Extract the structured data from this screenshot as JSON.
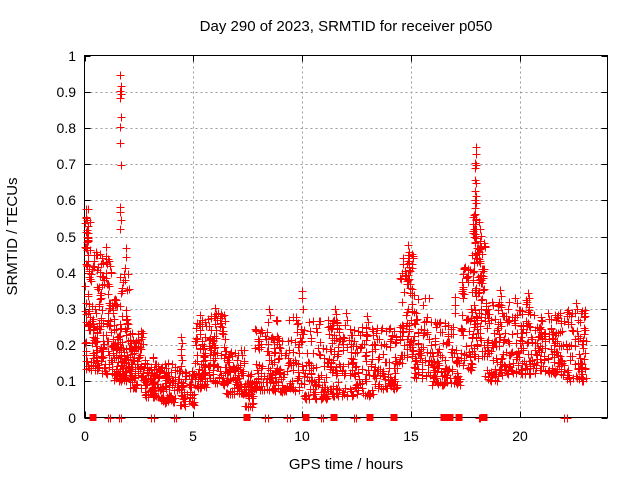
{
  "page": {
    "background": "#ffffff"
  },
  "chart_data": {
    "type": "scatter",
    "title": "Day 290 of 2023, SRMTID for receiver p050",
    "xlabel": "GPS time / hours",
    "ylabel": "SRMTID / TECUs",
    "xlim": [
      0,
      24
    ],
    "ylim": [
      0,
      1
    ],
    "xtick_values": [
      0,
      5,
      10,
      15,
      20
    ],
    "xtick_labels": [
      "0",
      "5",
      "10",
      "15",
      "20"
    ],
    "ytick_values": [
      0,
      0.1,
      0.2,
      0.3,
      0.4,
      0.5,
      0.6,
      0.7,
      0.8,
      0.9,
      1
    ],
    "ytick_labels": [
      "0",
      "0.1",
      "0.2",
      "0.3",
      "0.4",
      "0.5",
      "0.6",
      "0.7",
      "0.8",
      "0.9",
      "1"
    ],
    "grid": true,
    "legend": "none",
    "marker": "plus",
    "marker_color": "#ff0000",
    "grid_color": "#9a9a9a",
    "axis_color": "#000000",
    "random_seed": 20231017,
    "peak_points": [
      [
        0.07,
        0.575
      ],
      [
        0.09,
        0.555
      ],
      [
        0.11,
        0.545
      ],
      [
        0.08,
        0.512
      ],
      [
        0.12,
        0.5
      ],
      [
        0.15,
        0.498
      ],
      [
        0.17,
        0.488
      ],
      [
        0.05,
        0.47
      ],
      [
        0.1,
        0.462
      ],
      [
        1.0,
        0.47
      ],
      [
        0.99,
        0.445
      ],
      [
        1.02,
        0.425
      ],
      [
        1.0,
        0.4
      ],
      [
        0.97,
        0.385
      ],
      [
        1.03,
        0.37
      ],
      [
        1.65,
        0.945
      ],
      [
        1.66,
        0.917
      ],
      [
        1.64,
        0.902
      ],
      [
        1.67,
        0.894
      ],
      [
        1.65,
        0.882
      ],
      [
        1.66,
        0.83
      ],
      [
        1.64,
        0.802
      ],
      [
        1.65,
        0.757
      ],
      [
        1.66,
        0.697
      ],
      [
        1.63,
        0.582
      ],
      [
        1.65,
        0.568
      ],
      [
        1.67,
        0.545
      ],
      [
        1.64,
        0.522
      ],
      [
        1.9,
        0.468
      ],
      [
        1.91,
        0.443
      ],
      [
        1.88,
        0.412
      ],
      [
        4.45,
        0.222
      ],
      [
        4.46,
        0.205
      ],
      [
        4.44,
        0.19
      ],
      [
        4.45,
        0.172
      ],
      [
        4.46,
        0.158
      ],
      [
        4.44,
        0.142
      ],
      [
        5.32,
        0.282
      ],
      [
        5.38,
        0.268
      ],
      [
        5.28,
        0.252
      ],
      [
        5.98,
        0.302
      ],
      [
        6.04,
        0.285
      ],
      [
        6.1,
        0.27
      ],
      [
        8.48,
        0.3
      ],
      [
        8.52,
        0.282
      ],
      [
        8.42,
        0.265
      ],
      [
        10.0,
        0.35
      ],
      [
        9.97,
        0.33
      ],
      [
        10.03,
        0.3
      ],
      [
        11.5,
        0.3
      ],
      [
        11.55,
        0.285
      ],
      [
        11.45,
        0.27
      ],
      [
        11.6,
        0.26
      ],
      [
        12.0,
        0.29
      ],
      [
        12.05,
        0.27
      ],
      [
        11.95,
        0.255
      ],
      [
        12.95,
        0.28
      ],
      [
        13.0,
        0.265
      ],
      [
        12.9,
        0.25
      ],
      [
        14.85,
        0.477
      ],
      [
        14.87,
        0.458
      ],
      [
        14.83,
        0.448
      ],
      [
        14.9,
        0.44
      ],
      [
        14.86,
        0.432
      ],
      [
        14.8,
        0.425
      ],
      [
        14.88,
        0.415
      ],
      [
        14.92,
        0.405
      ],
      [
        14.84,
        0.395
      ],
      [
        14.9,
        0.383
      ],
      [
        14.86,
        0.37
      ],
      [
        14.94,
        0.357
      ],
      [
        14.6,
        0.44
      ],
      [
        14.63,
        0.425
      ],
      [
        14.57,
        0.398
      ],
      [
        17.0,
        0.332
      ],
      [
        16.99,
        0.31
      ],
      [
        17.02,
        0.29
      ],
      [
        17.95,
        0.747
      ],
      [
        17.96,
        0.728
      ],
      [
        17.92,
        0.703
      ],
      [
        17.97,
        0.697
      ],
      [
        17.94,
        0.69
      ],
      [
        17.91,
        0.656
      ],
      [
        17.95,
        0.647
      ],
      [
        17.93,
        0.625
      ],
      [
        17.97,
        0.612
      ],
      [
        17.9,
        0.6
      ],
      [
        17.96,
        0.592
      ],
      [
        17.92,
        0.578
      ],
      [
        17.94,
        0.562
      ],
      [
        17.98,
        0.548
      ],
      [
        17.9,
        0.535
      ],
      [
        17.95,
        0.522
      ],
      [
        17.93,
        0.508
      ],
      [
        17.97,
        0.495
      ],
      [
        17.91,
        0.482
      ],
      [
        17.99,
        0.468
      ],
      [
        17.94,
        0.455
      ],
      [
        18.0,
        0.44
      ],
      [
        17.89,
        0.43
      ],
      [
        18.16,
        0.52
      ],
      [
        18.2,
        0.502
      ],
      [
        18.18,
        0.472
      ],
      [
        18.23,
        0.452
      ],
      [
        18.17,
        0.432
      ],
      [
        18.25,
        0.41
      ],
      [
        18.14,
        0.392
      ],
      [
        18.21,
        0.372
      ],
      [
        18.27,
        0.352
      ],
      [
        19.05,
        0.352
      ],
      [
        19.1,
        0.335
      ],
      [
        19.0,
        0.32
      ],
      [
        20.35,
        0.345
      ],
      [
        20.4,
        0.33
      ],
      [
        20.3,
        0.318
      ],
      [
        22.55,
        0.315
      ],
      [
        22.6,
        0.3
      ],
      [
        22.5,
        0.29
      ]
    ],
    "band_segments": [
      [
        0.02,
        0.3,
        55,
        0.1,
        0.58,
        1.0
      ],
      [
        0.3,
        0.75,
        70,
        0.13,
        0.46,
        1.3
      ],
      [
        0.75,
        1.25,
        65,
        0.12,
        0.45,
        1.4
      ],
      [
        1.25,
        1.55,
        45,
        0.1,
        0.34,
        1.3
      ],
      [
        1.55,
        2.05,
        85,
        0.1,
        0.4,
        1.4
      ],
      [
        2.05,
        2.7,
        80,
        0.08,
        0.24,
        1.3
      ],
      [
        2.7,
        3.5,
        80,
        0.055,
        0.17,
        1.3
      ],
      [
        3.5,
        4.35,
        70,
        0.04,
        0.15,
        1.3
      ],
      [
        4.35,
        5.05,
        45,
        0.03,
        0.13,
        1.2
      ],
      [
        5.05,
        5.65,
        70,
        0.08,
        0.27,
        1.5
      ],
      [
        5.65,
        6.45,
        80,
        0.09,
        0.29,
        1.6
      ],
      [
        6.45,
        7.35,
        80,
        0.065,
        0.19,
        1.4
      ],
      [
        7.35,
        7.75,
        35,
        0.03,
        0.12,
        1.2
      ],
      [
        7.75,
        8.75,
        85,
        0.075,
        0.27,
        1.7
      ],
      [
        8.75,
        9.95,
        90,
        0.07,
        0.28,
        1.8
      ],
      [
        9.95,
        11.25,
        95,
        0.05,
        0.27,
        1.8
      ],
      [
        11.25,
        12.1,
        75,
        0.06,
        0.27,
        1.7
      ],
      [
        12.1,
        13.35,
        95,
        0.06,
        0.25,
        1.6
      ],
      [
        13.35,
        14.45,
        80,
        0.08,
        0.25,
        1.5
      ],
      [
        14.45,
        14.75,
        25,
        0.14,
        0.43,
        1.2
      ],
      [
        14.75,
        15.1,
        45,
        0.16,
        0.46,
        1.1
      ],
      [
        15.1,
        15.85,
        60,
        0.11,
        0.34,
        1.5
      ],
      [
        15.85,
        17.3,
        110,
        0.09,
        0.27,
        1.6
      ],
      [
        17.3,
        17.8,
        50,
        0.13,
        0.44,
        1.2
      ],
      [
        17.8,
        18.12,
        55,
        0.16,
        0.56,
        1.1
      ],
      [
        18.12,
        18.38,
        35,
        0.17,
        0.5,
        1.2
      ],
      [
        18.38,
        19.25,
        85,
        0.1,
        0.32,
        1.5
      ],
      [
        19.25,
        20.65,
        110,
        0.12,
        0.33,
        1.5
      ],
      [
        20.65,
        21.95,
        105,
        0.12,
        0.29,
        1.5
      ],
      [
        21.95,
        23.05,
        80,
        0.1,
        0.3,
        1.5
      ]
    ],
    "zero_marker_squares": [
      0.4,
      7.45,
      10.15,
      11.45,
      13.1,
      14.2,
      16.5,
      16.62,
      16.78,
      17.2,
      18.35
    ],
    "zero_marker_pluses": [
      1.07,
      1.17,
      1.57,
      1.68,
      3.05,
      3.17,
      4.09,
      4.21,
      8.3,
      8.42,
      9.3,
      9.42,
      10.85,
      10.95,
      12.35,
      12.47,
      18.1,
      18.17,
      22.0,
      22.12
    ]
  }
}
